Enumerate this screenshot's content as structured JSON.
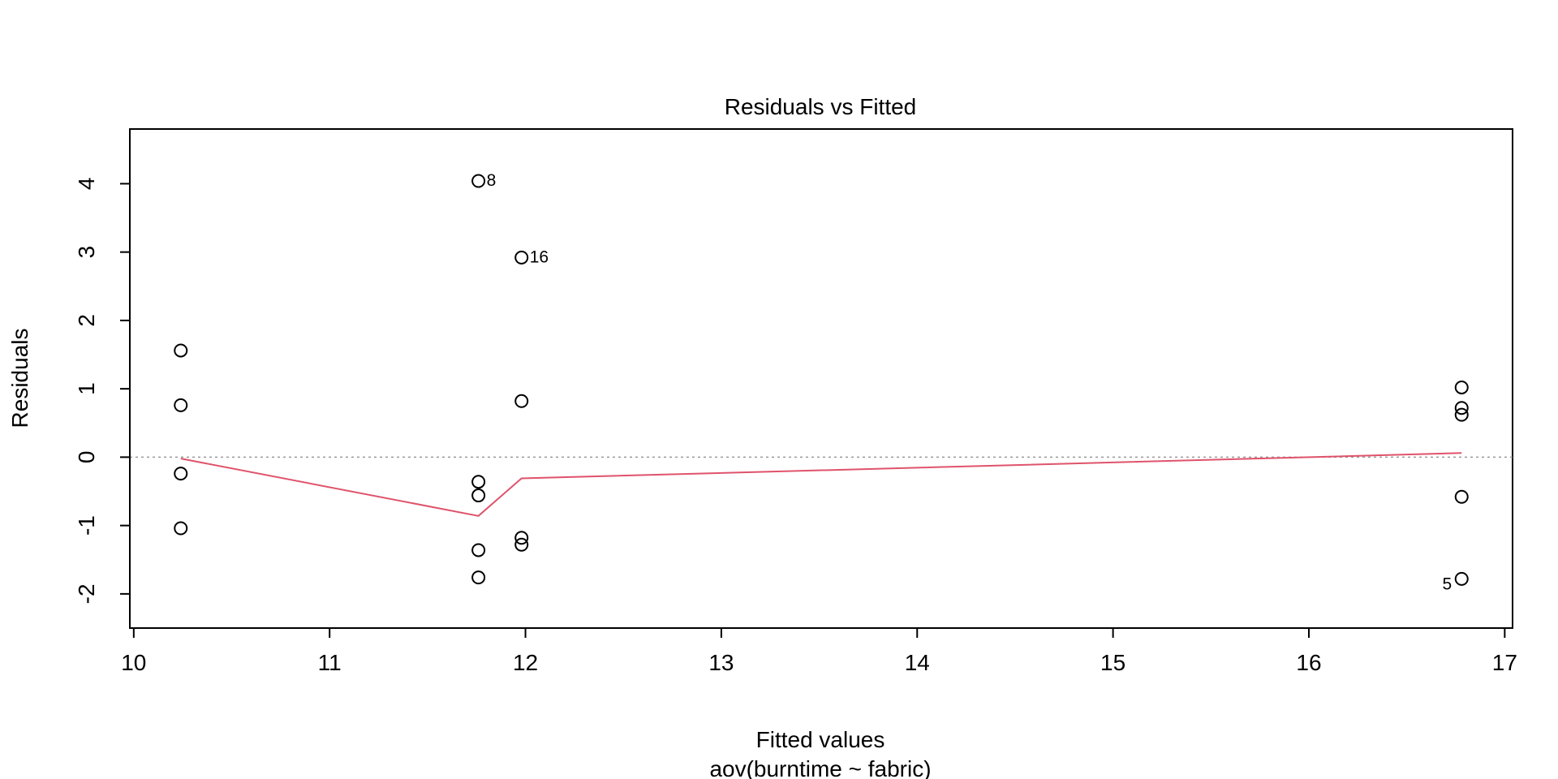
{
  "chart_data": {
    "type": "scatter",
    "title": "Residuals vs Fitted",
    "xlabel": "Fitted values",
    "xlabel_sub": "aov(burntime ~ fabric)",
    "ylabel": "Residuals",
    "xlim": [
      9.98,
      17.04
    ],
    "ylim": [
      -2.5,
      4.8
    ],
    "xticks": [
      10,
      11,
      12,
      13,
      14,
      15,
      16,
      17
    ],
    "yticks": [
      -2,
      -1,
      0,
      1,
      2,
      3,
      4
    ],
    "grid": false,
    "points": [
      {
        "x": 10.24,
        "y": 1.56
      },
      {
        "x": 10.24,
        "y": 0.76
      },
      {
        "x": 10.24,
        "y": -0.24
      },
      {
        "x": 10.24,
        "y": -1.04
      },
      {
        "x": 11.76,
        "y": 4.04,
        "label": "8"
      },
      {
        "x": 11.76,
        "y": -0.36
      },
      {
        "x": 11.76,
        "y": -0.56
      },
      {
        "x": 11.76,
        "y": -1.36
      },
      {
        "x": 11.76,
        "y": -1.76
      },
      {
        "x": 11.98,
        "y": 2.92,
        "label": "16"
      },
      {
        "x": 11.98,
        "y": 0.82
      },
      {
        "x": 11.98,
        "y": -1.18
      },
      {
        "x": 11.98,
        "y": -1.28
      },
      {
        "x": 16.78,
        "y": 1.02
      },
      {
        "x": 16.78,
        "y": 0.72
      },
      {
        "x": 16.78,
        "y": 0.62
      },
      {
        "x": 16.78,
        "y": -0.58
      },
      {
        "x": 16.78,
        "y": -1.78,
        "label": "5"
      }
    ],
    "smoother": {
      "color": "#DF536B",
      "x": [
        10.24,
        11.76,
        11.98,
        16.78
      ],
      "y": [
        -0.02,
        -0.86,
        -0.31,
        0.06
      ]
    },
    "reference_line": {
      "y": 0,
      "style": "dotted",
      "color": "#999999"
    }
  }
}
